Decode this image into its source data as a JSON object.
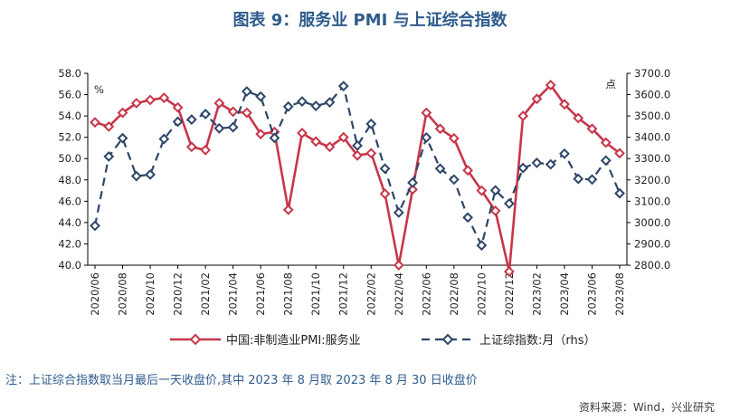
{
  "title": "图表 9：服务业 PMI 与上证综合指数",
  "note": "注：上证综合指数取当月最后一天收盘价,其中 2023 年 8 月取 2023 年 8 月 30 日收盘价",
  "source": "资料来源：Wind，兴业研究",
  "colors": {
    "pmi": "#c8364a",
    "index": "#2e4668",
    "title": "#2f5b8c",
    "axis": "#000000"
  },
  "chart_data": {
    "type": "line",
    "y_left": {
      "label": "%",
      "min": 40,
      "max": 58,
      "step": 2,
      "tick_labels": [
        "40.0",
        "42.0",
        "44.0",
        "46.0",
        "48.0",
        "50.0",
        "52.0",
        "54.0",
        "56.0",
        "58.0"
      ]
    },
    "y_right": {
      "label": "点",
      "min": 2800,
      "max": 3700,
      "step": 100,
      "tick_labels": [
        "2800.0",
        "2900.0",
        "3000.0",
        "3100.0",
        "3200.0",
        "3300.0",
        "3400.0",
        "3500.0",
        "3600.0",
        "3700.0"
      ]
    },
    "x_ticks": [
      "2020/06",
      "2020/08",
      "2020/10",
      "2020/12",
      "2021/02",
      "2021/04",
      "2021/06",
      "2021/08",
      "2021/10",
      "2021/12",
      "2022/02",
      "2022/04",
      "2022/06",
      "2022/08",
      "2022/10",
      "2022/12",
      "2023/02",
      "2023/04",
      "2023/06",
      "2023/08"
    ],
    "months": [
      "2020/06",
      "2020/07",
      "2020/08",
      "2020/09",
      "2020/10",
      "2020/11",
      "2020/12",
      "2021/01",
      "2021/02",
      "2021/03",
      "2021/04",
      "2021/05",
      "2021/06",
      "2021/07",
      "2021/08",
      "2021/09",
      "2021/10",
      "2021/11",
      "2021/12",
      "2022/01",
      "2022/02",
      "2022/03",
      "2022/04",
      "2022/05",
      "2022/06",
      "2022/07",
      "2022/08",
      "2022/09",
      "2022/10",
      "2022/11",
      "2022/12",
      "2023/01",
      "2023/02",
      "2023/03",
      "2023/04",
      "2023/05",
      "2023/06",
      "2023/07",
      "2023/08"
    ],
    "series": [
      {
        "name": "中国:非制造业PMI:服务业",
        "axis": "left",
        "style": "solid",
        "values": [
          53.4,
          53.0,
          54.3,
          55.2,
          55.5,
          55.7,
          54.8,
          51.1,
          50.8,
          55.2,
          54.4,
          54.3,
          52.3,
          52.5,
          45.2,
          52.4,
          51.6,
          51.1,
          52.0,
          50.3,
          50.5,
          46.7,
          40.0,
          47.1,
          54.3,
          52.8,
          51.9,
          48.9,
          47.0,
          45.1,
          39.4,
          54.0,
          55.6,
          56.9,
          55.1,
          53.8,
          52.8,
          51.5,
          50.5
        ]
      },
      {
        "name": "上证综指数:月（rhs）",
        "axis": "right",
        "style": "dashed",
        "values": [
          2985,
          3310,
          3396,
          3218,
          3225,
          3392,
          3473,
          3483,
          3509,
          3442,
          3447,
          3615,
          3591,
          3397,
          3544,
          3568,
          3547,
          3564,
          3640,
          3361,
          3463,
          3253,
          3047,
          3187,
          3399,
          3253,
          3202,
          3024,
          2893,
          3151,
          3089,
          3256,
          3280,
          3273,
          3323,
          3205,
          3202,
          3291,
          3137
        ]
      }
    ],
    "legend": [
      "中国:非制造业PMI:服务业",
      "上证综指数:月（rhs）"
    ],
    "legend_position": "bottom",
    "grid": false
  }
}
